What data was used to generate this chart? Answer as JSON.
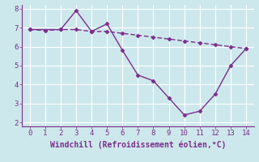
{
  "line1_x": [
    0,
    1,
    2,
    3,
    4,
    5,
    6,
    7,
    8,
    9,
    10,
    11,
    12,
    13,
    14
  ],
  "line1_y": [
    6.9,
    6.85,
    6.9,
    6.9,
    6.8,
    6.8,
    6.7,
    6.6,
    6.5,
    6.4,
    6.3,
    6.2,
    6.1,
    6.0,
    5.9
  ],
  "line2_x": [
    0,
    2,
    3,
    4,
    5,
    6,
    7,
    8,
    9,
    10,
    11,
    12,
    13,
    14
  ],
  "line2_y": [
    6.9,
    6.9,
    7.9,
    6.8,
    7.2,
    5.8,
    4.5,
    4.2,
    3.3,
    2.4,
    2.6,
    3.5,
    5.0,
    5.9
  ],
  "line_color": "#7b2d8b",
  "bg_color": "#cde8ec",
  "grid_color": "#b0d8dc",
  "xlabel": "Windchill (Refroidissement éolien,°C)",
  "xlim": [
    -0.5,
    14.5
  ],
  "ylim": [
    1.8,
    8.2
  ],
  "xticks": [
    0,
    1,
    2,
    3,
    4,
    5,
    6,
    7,
    8,
    9,
    10,
    11,
    12,
    13,
    14
  ],
  "yticks": [
    2,
    3,
    4,
    5,
    6,
    7,
    8
  ],
  "markersize": 2.5,
  "linewidth": 1.0,
  "xlabel_fontsize": 7,
  "tick_fontsize": 6.5
}
